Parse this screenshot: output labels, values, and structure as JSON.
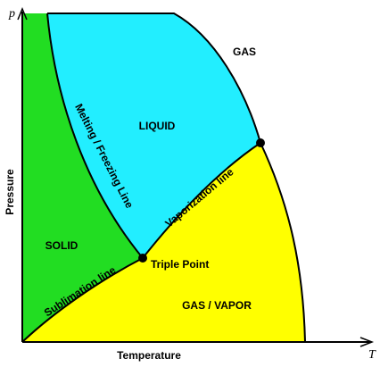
{
  "axes": {
    "y_symbol": "p",
    "x_symbol": "T",
    "y_label": "Pressure",
    "x_label": "Temperature"
  },
  "regions": {
    "gas": "GAS",
    "liquid": "LIQUID",
    "solid": "SOLID",
    "vapor": "GAS / VAPOR"
  },
  "lines": {
    "melting": "Melting / Freezing Line",
    "vaporization": "Vaporization line",
    "sublimation": "Sublimation line"
  },
  "points": {
    "triple": "Triple Point"
  }
}
